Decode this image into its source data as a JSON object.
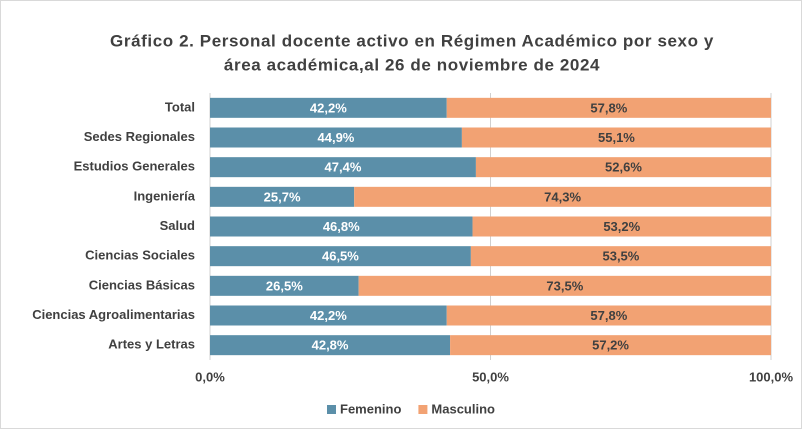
{
  "chart_data": {
    "type": "stacked_bar_horizontal",
    "title": [
      "Gráfico 2. Personal docente activo en Régimen Académico por sexo y",
      "área académica,al 26 de noviembre de 2024"
    ],
    "categories": [
      "Total",
      "Sedes Regionales",
      "Estudios Generales",
      "Ingeniería",
      "Salud",
      "Ciencias Sociales",
      "Ciencias Básicas",
      "Ciencias Agroalimentarias",
      "Artes y Letras"
    ],
    "series": [
      {
        "name": "Femenino",
        "color": "#5b8fa9",
        "values": [
          42.2,
          44.9,
          47.4,
          25.7,
          46.8,
          46.5,
          26.5,
          42.2,
          42.8
        ],
        "value_labels": [
          "42,2%",
          "44,9%",
          "47,4%",
          "25,7%",
          "46,8%",
          "46,5%",
          "26,5%",
          "42,2%",
          "42,8%"
        ]
      },
      {
        "name": "Masculino",
        "color": "#f2a273",
        "values": [
          57.8,
          55.1,
          52.6,
          74.3,
          53.2,
          53.5,
          73.5,
          57.8,
          57.2
        ],
        "value_labels": [
          "57,8%",
          "55,1%",
          "52,6%",
          "74,3%",
          "53,2%",
          "53,5%",
          "73,5%",
          "57,8%",
          "57,2%"
        ]
      }
    ],
    "xlim": [
      0,
      100
    ],
    "xticks": [
      {
        "value": 0,
        "label": "0,0%"
      },
      {
        "value": 50,
        "label": "50,0%"
      },
      {
        "value": 100,
        "label": "100,0%"
      }
    ],
    "grid": true,
    "legend": "bottom"
  }
}
